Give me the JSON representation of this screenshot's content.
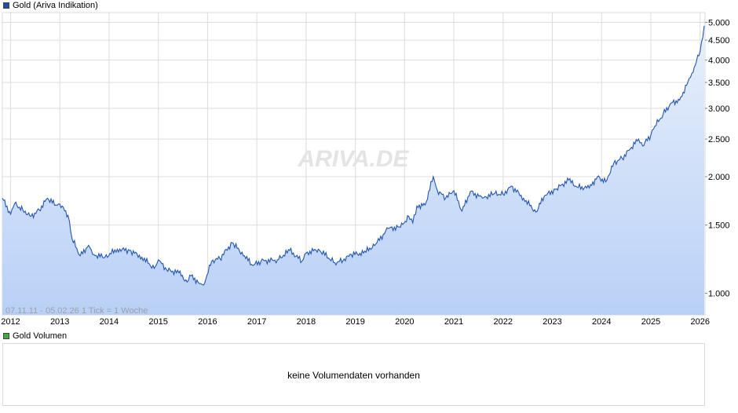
{
  "legend": {
    "main_label": "Gold (Ariva Indikation)",
    "main_color": "#1f4ea3",
    "volume_label": "Gold Volumen",
    "volume_color": "#3fa83f"
  },
  "watermark": "ARIVA.DE",
  "range_info": "07.11.11 - 05.02.26   1 Tick = 1 Woche",
  "volume_message": "keine Volumendaten vorhanden",
  "colors": {
    "line": "#2255b0",
    "fill_top": "#e8f0fc",
    "fill_bottom": "#b9d0f6",
    "grid": "#dddddd"
  },
  "chart_data": {
    "type": "area",
    "series": [
      {
        "name": "Gold (Ariva Indikation)",
        "x": [
          "2011-11",
          "2012-01",
          "2012-02",
          "2012-04",
          "2012-06",
          "2012-08",
          "2012-10",
          "2012-12",
          "2013-01",
          "2013-03",
          "2013-04",
          "2013-06",
          "2013-08",
          "2013-09",
          "2013-12",
          "2014-03",
          "2014-06",
          "2014-09",
          "2014-12",
          "2015-01",
          "2015-03",
          "2015-06",
          "2015-08",
          "2015-09",
          "2015-11",
          "2015-12",
          "2016-02",
          "2016-04",
          "2016-07",
          "2016-10",
          "2016-12",
          "2017-02",
          "2017-06",
          "2017-09",
          "2017-12",
          "2018-01",
          "2018-04",
          "2018-08",
          "2018-10",
          "2018-12",
          "2019-03",
          "2019-06",
          "2019-09",
          "2019-12",
          "2020-02",
          "2020-03",
          "2020-04",
          "2020-06",
          "2020-08",
          "2020-09",
          "2020-11",
          "2021-01",
          "2021-03",
          "2021-05",
          "2021-08",
          "2021-11",
          "2022-01",
          "2022-03",
          "2022-06",
          "2022-09",
          "2022-11",
          "2023-02",
          "2023-05",
          "2023-07",
          "2023-10",
          "2023-12",
          "2024-02",
          "2024-04",
          "2024-06",
          "2024-08",
          "2024-10",
          "2024-11",
          "2025-01",
          "2025-02",
          "2025-04",
          "2025-06",
          "2025-08",
          "2025-10",
          "2025-11",
          "2026-01",
          "2026-02"
        ],
        "values": [
          1760,
          1600,
          1705,
          1640,
          1580,
          1640,
          1760,
          1690,
          1700,
          1590,
          1380,
          1250,
          1330,
          1260,
          1240,
          1300,
          1290,
          1240,
          1160,
          1220,
          1150,
          1130,
          1070,
          1110,
          1060,
          1050,
          1210,
          1230,
          1350,
          1250,
          1180,
          1210,
          1220,
          1290,
          1210,
          1270,
          1300,
          1200,
          1215,
          1260,
          1270,
          1340,
          1470,
          1480,
          1580,
          1520,
          1680,
          1690,
          2000,
          1840,
          1760,
          1840,
          1630,
          1830,
          1760,
          1810,
          1800,
          1890,
          1760,
          1620,
          1780,
          1860,
          1960,
          1880,
          1870,
          2000,
          1940,
          2170,
          2230,
          2360,
          2500,
          2400,
          2560,
          2700,
          2900,
          3100,
          3150,
          3500,
          3700,
          4200,
          4900
        ]
      }
    ],
    "y_scale": "log",
    "ylim": [
      880,
      5300
    ],
    "y_ticks": [
      1000,
      1500,
      2000,
      2500,
      3000,
      3500,
      4000,
      4500,
      5000
    ],
    "y_tick_labels": [
      "1.000",
      "1.500",
      "2.000",
      "2.500",
      "3.000",
      "3.500",
      "4.000",
      "4.500",
      "5.000"
    ],
    "x_ticks": [
      "2012",
      "2013",
      "2014",
      "2015",
      "2016",
      "2017",
      "2018",
      "2019",
      "2020",
      "2021",
      "2022",
      "2023",
      "2024",
      "2025",
      "2026"
    ],
    "grid": true,
    "legend": "top-left"
  }
}
